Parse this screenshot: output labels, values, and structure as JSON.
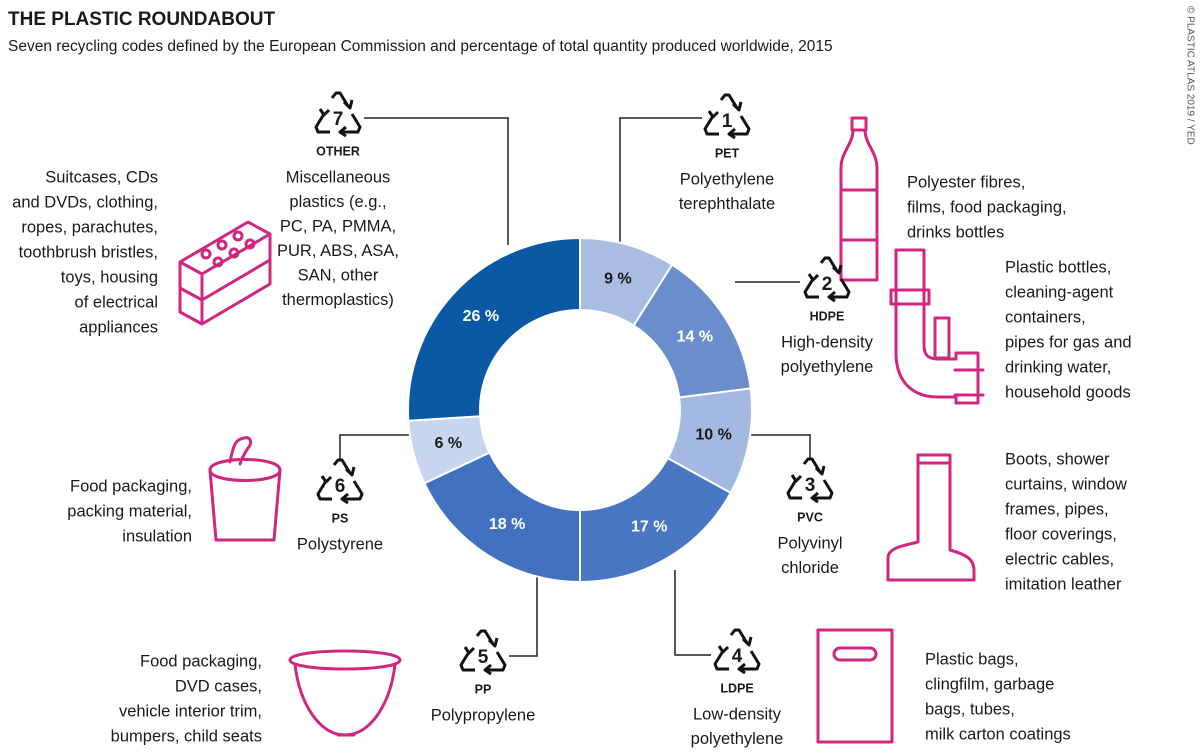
{
  "chart_data": {
    "type": "donut",
    "title": "THE PLASTIC ROUNDABOUT",
    "subtitle": "Seven recycling codes defined by the European Commission and percentage of total quantity produced worldwide, 2015",
    "credit": "© PLASTIC ATLAS 2019 / YED",
    "categories": [
      "PET",
      "HDPE",
      "PVC",
      "LDPE",
      "PP",
      "PS",
      "OTHER"
    ],
    "values": [
      9,
      14,
      10,
      17,
      18,
      6,
      26
    ],
    "value_labels": [
      "9 %",
      "14 %",
      "10 %",
      "17 %",
      "18 %",
      "6 %",
      "26 %"
    ],
    "colors": [
      "#a9bde3",
      "#6a8ecb",
      "#a3b9e1",
      "#4a77c3",
      "#4271c0",
      "#c7d5ef",
      "#0b58a5"
    ],
    "annotations": [
      {
        "number": "1",
        "name": [
          "Polyethylene",
          "terephthalate"
        ],
        "uses": [
          "Polyester fibres,",
          "films, food packaging,",
          "drinks bottles"
        ]
      },
      {
        "number": "2",
        "name": [
          "High-density",
          "polyethylene"
        ],
        "uses": [
          "Plastic bottles,",
          "cleaning-agent",
          "containers,",
          "pipes for gas and",
          "drinking water,",
          "household goods"
        ]
      },
      {
        "number": "3",
        "name": [
          "Polyvinyl",
          "chloride"
        ],
        "uses": [
          "Boots, shower",
          "curtains, window",
          "frames, pipes,",
          "floor coverings,",
          "electric cables,",
          "imitation leather"
        ]
      },
      {
        "number": "4",
        "name": [
          "Low-density",
          "polyethylene"
        ],
        "uses": [
          "Plastic bags,",
          "clingfilm, garbage",
          "bags, tubes,",
          "milk carton coatings"
        ]
      },
      {
        "number": "5",
        "name": [
          "Polypropylene"
        ],
        "uses": [
          "Food packaging,",
          "DVD cases,",
          "vehicle interior trim,",
          "bumpers, child seats"
        ]
      },
      {
        "number": "6",
        "name": [
          "Polystyrene"
        ],
        "uses": [
          "Food packaging,",
          "packing material,",
          "insulation"
        ]
      },
      {
        "number": "7",
        "name": [
          "Miscellaneous",
          "plastics (e.g.,",
          "PC, PA, PMMA,",
          "PUR, ABS, ASA,",
          "SAN, other",
          "thermoplastics)"
        ],
        "uses": [
          "Suitcases, CDs",
          "and DVDs, clothing,",
          "ropes, parachutes,",
          "toothbrush bristles,",
          "toys, housing",
          "of electrical",
          "appliances"
        ]
      }
    ]
  }
}
